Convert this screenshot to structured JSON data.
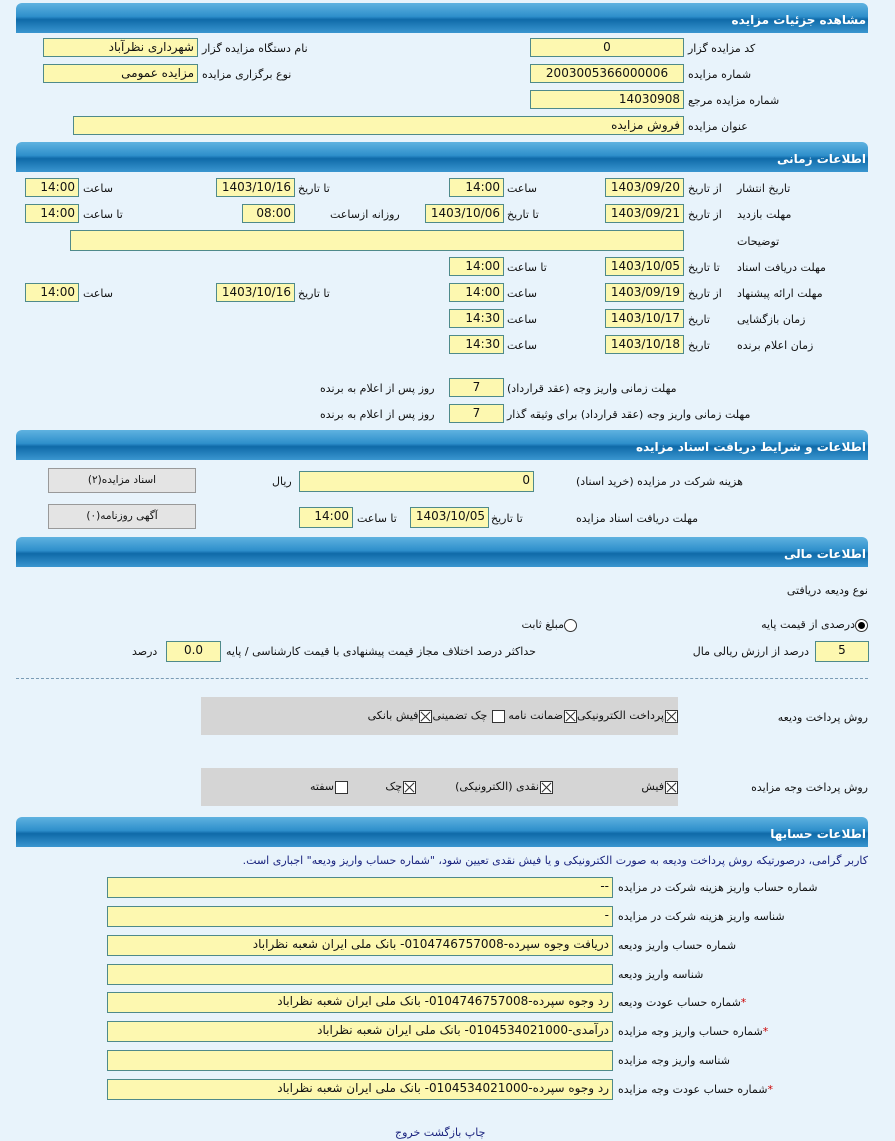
{
  "sections": {
    "details": "مشاهده جزئیات مزایده",
    "timing": "اطلاعات زمانی",
    "docs": "اطلاعات و شرایط دریافت اسناد مزایده",
    "finance": "اطلاعات مالی",
    "accounts": "اطلاعات حسابها"
  },
  "details": {
    "auctioneer_code": {
      "label": "کد مزایده گزار",
      "value": "0"
    },
    "auctioneer_name": {
      "label": "نام دستگاه مزایده گزار",
      "value": "شهرداری نظرآباد"
    },
    "auction_number": {
      "label": "شماره مزایده",
      "value": "2003005366000006"
    },
    "auction_type": {
      "label": "نوع برگزاری مزایده",
      "value": "مزایده عمومی"
    },
    "reference_number": {
      "label": "شماره مزایده مرجع",
      "value": "14030908"
    },
    "title": {
      "label": "عنوان مزایده",
      "value": "فروش مزایده"
    }
  },
  "timing": {
    "from_date": "از تاریخ",
    "to_date": "تا تاریخ",
    "date": "تاریخ",
    "time": "ساعت",
    "to_time": "تا ساعت",
    "daily_from": "روزانه ازساعت",
    "publish": {
      "label": "تاریخ انتشار",
      "from_date": "1403/09/20",
      "from_time": "14:00",
      "to_date": "1403/10/16",
      "to_time": "14:00"
    },
    "visit": {
      "label": "مهلت بازدید",
      "from_date": "1403/09/21",
      "to_date": "1403/10/06",
      "daily_from": "08:00",
      "to_time": "14:00"
    },
    "description": {
      "label": "توضیحات",
      "value": ""
    },
    "doc_receive": {
      "label": "مهلت دریافت اسناد",
      "to_date": "1403/10/05",
      "to_time": "14:00"
    },
    "offer": {
      "label": "مهلت ارائه پیشنهاد",
      "from_date": "1403/09/19",
      "from_time": "14:00",
      "to_date": "1403/10/16",
      "to_time": "14:00"
    },
    "opening": {
      "label": "زمان بازگشایی",
      "date": "1403/10/17",
      "time": "14:30"
    },
    "winner": {
      "label": "زمان اعلام برنده",
      "date": "1403/10/18",
      "time": "14:30"
    },
    "payment_deadline": {
      "label": "مهلت زمانی واریز وجه (عقد قرارداد)",
      "value": "7",
      "suffix": "روز پس از اعلام به برنده"
    },
    "payment_deadline_guarantor": {
      "label": "مهلت زمانی واریز وجه (عقد قرارداد) برای وثیقه گذار",
      "value": "7",
      "suffix": "روز پس از اعلام به برنده"
    }
  },
  "docs": {
    "fee": {
      "label": "هزینه شرکت در مزایده (خرید اسناد)",
      "value": "0",
      "unit": "ریال"
    },
    "deadline": {
      "label": "مهلت دریافت اسناد مزایده",
      "to_date_label": "تا تاریخ",
      "date": "1403/10/05",
      "to_time_label": "تا ساعت",
      "time": "14:00"
    },
    "btn_docs": "اسناد مزایده(۲)",
    "btn_ads": "آگهی روزنامه(۰)"
  },
  "finance": {
    "deposit_type_label": "نوع ودیعه دریافتی",
    "radio_percent": "درصدی از قیمت پایه",
    "radio_fixed": "مبلغ ثابت",
    "radio_selected": "percent",
    "percent_value": "5",
    "percent_suffix": "درصد از ارزش ریالی مال",
    "max_diff_label": "حداکثر درصد اختلاف مجاز قیمت پیشنهادی با قیمت کارشناسی / پایه",
    "max_diff_value": "0.0",
    "max_diff_unit": "درصد",
    "deposit_method_label": "روش پرداخت ودیعه",
    "deposit_methods": [
      {
        "label": "پرداخت الکترونیکی",
        "checked": true
      },
      {
        "label": "ضمانت نامه",
        "checked": true
      },
      {
        "label": "چک تضمینی",
        "checked": false
      },
      {
        "label": "فیش بانکی",
        "checked": true
      }
    ],
    "payment_method_label": "روش پرداخت وجه مزایده",
    "payment_methods": [
      {
        "label": "فیش",
        "checked": true
      },
      {
        "label": "نقدی (الکترونیکی)",
        "checked": true
      },
      {
        "label": "چک",
        "checked": true
      },
      {
        "label": "سفته",
        "checked": false
      }
    ]
  },
  "accounts": {
    "notice": "کاربر گرامی، درصورتیکه روش پرداخت ودیعه به صورت الکترونیکی و یا فیش نقدی تعیین شود، \"شماره حساب واریز ودیعه\" اجباری است.",
    "rows": [
      {
        "label": "شماره حساب واریز هزینه شرکت در مزایده",
        "value": "--",
        "required": false
      },
      {
        "label": "شناسه واریز هزینه شرکت در مزایده",
        "value": "-",
        "required": false
      },
      {
        "label": "شماره حساب واریز ودیعه",
        "value": "دریافت وجوه سپرده-0104746757008- بانک ملی ایران شعبه نظراباد",
        "required": false
      },
      {
        "label": "شناسه واریز ودیعه",
        "value": "",
        "required": false
      },
      {
        "label": "شماره حساب عودت ودیعه",
        "value": "رد وجوه سپرده-0104746757008- بانک ملی ایران شعبه نظراباد",
        "required": true
      },
      {
        "label": "شماره حساب واریز وجه مزایده",
        "value": "درآمدی-0104534021000- بانک ملی ایران شعبه نظراباد",
        "required": true
      },
      {
        "label": "شناسه واریز وجه مزایده",
        "value": "",
        "required": false
      },
      {
        "label": "شماره حساب عودت وجه مزایده",
        "value": "رد وجوه سپرده-0104534021000- بانک ملی ایران شعبه نظراباد",
        "required": true
      }
    ]
  },
  "footer": {
    "print": "چاپ",
    "back": "بازگشت",
    "exit": "خروج"
  },
  "colors": {
    "field_bg": "#fdf8b0",
    "header_blue": "#1f7cbc",
    "page_bg": "#e8f3fb"
  }
}
